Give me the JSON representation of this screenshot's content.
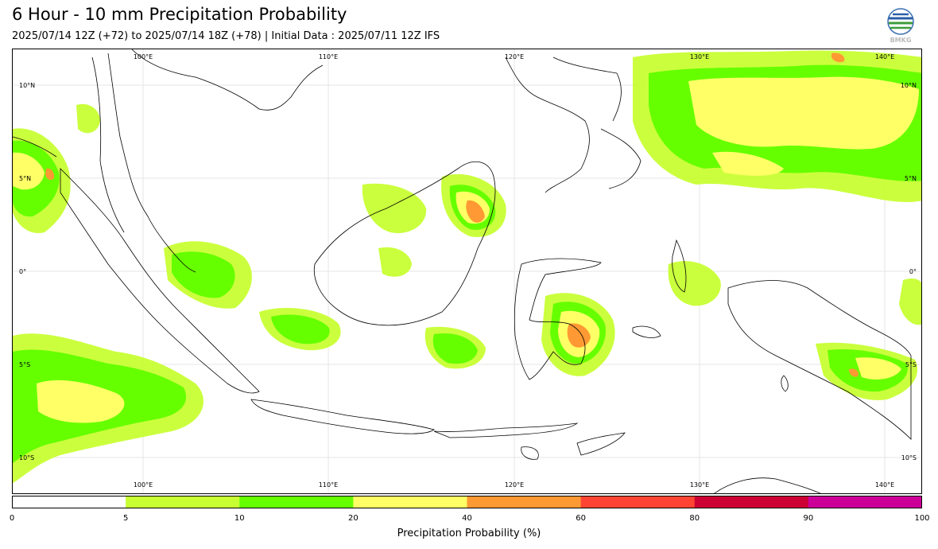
{
  "header": {
    "title": "6 Hour - 10 mm Precipitation Probability",
    "subtitle": "2025/07/14 12Z (+72) to 2025/07/14 18Z (+78) | Initial Data : 2025/07/11 12Z IFS"
  },
  "logo": {
    "icon": "bmkg-logo-icon",
    "text": "BMKG"
  },
  "map": {
    "lon_labels": [
      "100°E",
      "110°E",
      "120°E",
      "130°E",
      "140°E"
    ],
    "lat_labels": [
      "10°N",
      "5°N",
      "0°",
      "5°S",
      "10°S"
    ],
    "colors": {
      "c5_10": "#c8ff33",
      "c10_20": "#66ff00",
      "c20_40": "#ffff66",
      "c40_60": "#ff9933",
      "land_outline": "#000000"
    }
  },
  "colorbar": {
    "label": "Precipitation Probability (%)",
    "ticks": [
      "0",
      "5",
      "10",
      "20",
      "40",
      "60",
      "80",
      "90",
      "100"
    ],
    "colors": [
      "#ffffff",
      "#c8ff33",
      "#66ff00",
      "#ffff66",
      "#ff9933",
      "#ff4433",
      "#cc0033",
      "#cc0099"
    ]
  }
}
